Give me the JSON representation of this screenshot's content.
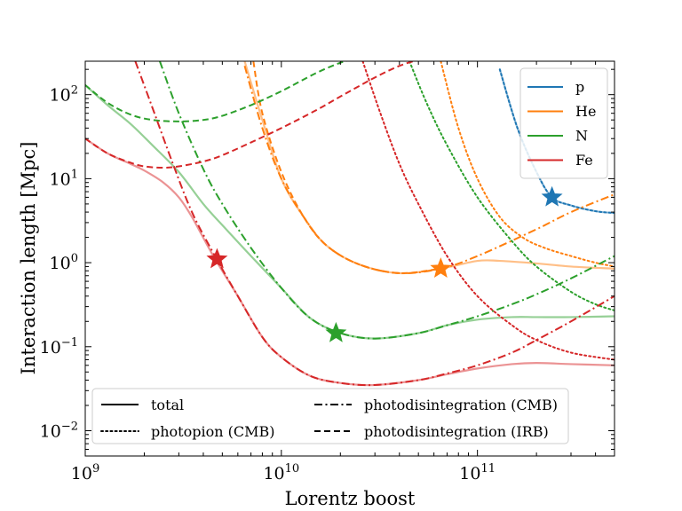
{
  "chart_data": {
    "type": "line",
    "xlabel": "Lorentz boost",
    "ylabel": "Interaction length [Mpc]",
    "xscale": "log",
    "yscale": "log",
    "xlim": [
      1000000000.0,
      500000000000.0
    ],
    "ylim": [
      0.005,
      250
    ],
    "x_ticks": [
      {
        "value": 1000000000.0,
        "base": "10",
        "exp": "9"
      },
      {
        "value": 10000000000.0,
        "base": "10",
        "exp": "10"
      },
      {
        "value": 100000000000.0,
        "base": "10",
        "exp": "11"
      }
    ],
    "y_ticks": [
      {
        "value": 0.01,
        "base": "10",
        "exp": "−2"
      },
      {
        "value": 0.1,
        "base": "10",
        "exp": "−1"
      },
      {
        "value": 1,
        "base": "10",
        "exp": "0"
      },
      {
        "value": 10,
        "base": "10",
        "exp": "1"
      },
      {
        "value": 100,
        "base": "10",
        "exp": "2"
      }
    ],
    "grid": false,
    "colors": {
      "p": "#1f77b4",
      "He": "#ff7f0e",
      "N": "#2ca02c",
      "Fe": "#d62728"
    },
    "species_legend": {
      "placement": "top-right",
      "entries": [
        {
          "name": "p",
          "color": "#1f77b4"
        },
        {
          "name": "He",
          "color": "#ff7f0e"
        },
        {
          "name": "N",
          "color": "#2ca02c"
        },
        {
          "name": "Fe",
          "color": "#d62728"
        }
      ]
    },
    "style_legend": {
      "placement": "lower-center",
      "entries": [
        {
          "label": "total",
          "style": "solid"
        },
        {
          "label": "photodisintegration (CMB)",
          "style": "dashdot"
        },
        {
          "label": "photopion (CMB)",
          "style": "dotted"
        },
        {
          "label": "photodisintegration (IRB)",
          "style": "dashed"
        }
      ]
    },
    "series": [
      {
        "species": "p",
        "process": "total",
        "style": "solid",
        "x": [
          130000000000.0,
          160000000000.0,
          200000000000.0,
          240000000000.0,
          300000000000.0,
          400000000000.0,
          500000000000.0
        ],
        "y": [
          200,
          40,
          12,
          6,
          4.8,
          4.1,
          3.9
        ]
      },
      {
        "species": "p",
        "process": "photopion (CMB)",
        "style": "dotted",
        "x": [
          130000000000.0,
          160000000000.0,
          200000000000.0,
          240000000000.0,
          300000000000.0,
          400000000000.0,
          500000000000.0
        ],
        "y": [
          200,
          40,
          12,
          6,
          4.8,
          4.1,
          3.9
        ]
      },
      {
        "species": "He",
        "process": "photodisintegration (CMB)",
        "style": "dashdot",
        "x": [
          6500000000.0,
          8000000000.0,
          10000000000.0,
          13000000000.0,
          17000000000.0,
          25000000000.0,
          40000000000.0,
          65000000000.0,
          100000000000.0,
          200000000000.0,
          300000000000.0,
          500000000000.0
        ],
        "y": [
          220,
          40,
          10,
          3.5,
          1.6,
          0.95,
          0.75,
          0.85,
          1.2,
          2.5,
          4,
          6.5
        ]
      },
      {
        "species": "He",
        "process": "photodisintegration (IRB)",
        "style": "dashed",
        "x": [
          7200000000.0,
          8000000000.0,
          10000000000.0,
          13000000000.0,
          17000000000.0,
          25000000000.0,
          40000000000.0,
          65000000000.0
        ],
        "y": [
          250,
          60,
          12,
          3.5,
          1.6,
          0.95,
          0.75,
          0.85
        ]
      },
      {
        "species": "He",
        "process": "photopion (CMB)",
        "style": "dotted",
        "x": [
          65000000000.0,
          80000000000.0,
          100000000000.0,
          130000000000.0,
          170000000000.0,
          220000000000.0,
          300000000000.0,
          400000000000.0,
          500000000000.0
        ],
        "y": [
          250,
          40,
          10,
          3.5,
          2,
          1.5,
          1.2,
          1,
          0.9
        ]
      },
      {
        "species": "He",
        "process": "total",
        "style": "solid",
        "x": [
          6500000000.0,
          8000000000.0,
          10000000000.0,
          13000000000.0,
          17000000000.0,
          25000000000.0,
          40000000000.0,
          65000000000.0,
          100000000000.0,
          130000000000.0,
          200000000000.0,
          300000000000.0,
          500000000000.0
        ],
        "y": [
          250,
          50,
          10,
          3.5,
          1.6,
          0.95,
          0.75,
          0.85,
          1.05,
          1.05,
          0.98,
          0.9,
          0.85
        ]
      },
      {
        "species": "N",
        "process": "photodisintegration (IRB)",
        "style": "dashed",
        "x": [
          1000000000.0,
          1300000000.0,
          1700000000.0,
          2200000000.0,
          3000000000.0,
          4000000000.0,
          5000000000.0,
          7000000000.0,
          10000000000.0,
          15000000000.0,
          20000000000.0,
          23000000000.0
        ],
        "y": [
          130,
          80,
          58,
          50,
          48,
          50,
          56,
          75,
          110,
          180,
          240,
          260
        ]
      },
      {
        "species": "N",
        "process": "photodisintegration (CMB)",
        "style": "dashdot",
        "x": [
          2400000000.0,
          3000000000.0,
          4000000000.0,
          5000000000.0,
          7000000000.0,
          10000000000.0,
          14000000000.0,
          20000000000.0,
          30000000000.0,
          50000000000.0,
          70000000000.0,
          100000000000.0,
          150000000000.0,
          200000000000.0,
          300000000000.0,
          500000000000.0
        ],
        "y": [
          250,
          60,
          13,
          5,
          1.5,
          0.5,
          0.22,
          0.145,
          0.125,
          0.145,
          0.18,
          0.23,
          0.32,
          0.42,
          0.65,
          1.2
        ]
      },
      {
        "species": "N",
        "process": "photopion (CMB)",
        "style": "dotted",
        "x": [
          45000000000.0,
          55000000000.0,
          70000000000.0,
          100000000000.0,
          150000000000.0,
          200000000000.0,
          300000000000.0,
          400000000000.0,
          500000000000.0
        ],
        "y": [
          250,
          80,
          25,
          6,
          1.8,
          0.9,
          0.45,
          0.32,
          0.27
        ]
      },
      {
        "species": "N",
        "process": "total",
        "style": "solid",
        "x": [
          1000000000.0,
          1300000000.0,
          1700000000.0,
          2200000000.0,
          3000000000.0,
          4000000000.0,
          5000000000.0,
          7000000000.0,
          10000000000.0,
          14000000000.0,
          20000000000.0,
          30000000000.0,
          50000000000.0,
          70000000000.0,
          100000000000.0,
          150000000000.0,
          200000000000.0,
          300000000000.0,
          500000000000.0
        ],
        "y": [
          130,
          75,
          45,
          25,
          12,
          5,
          2.8,
          1.2,
          0.5,
          0.22,
          0.145,
          0.125,
          0.145,
          0.18,
          0.21,
          0.225,
          0.225,
          0.225,
          0.23
        ]
      },
      {
        "species": "Fe",
        "process": "photodisintegration (IRB)",
        "style": "dashed",
        "x": [
          1000000000.0,
          1300000000.0,
          1700000000.0,
          2000000000.0,
          2500000000.0,
          3000000000.0,
          4000000000.0,
          5000000000.0,
          7000000000.0,
          10000000000.0,
          15000000000.0,
          20000000000.0,
          30000000000.0,
          40000000000.0,
          50000000000.0
        ],
        "y": [
          30,
          20,
          15.5,
          14,
          13.5,
          14,
          16,
          19,
          27,
          40,
          65,
          95,
          160,
          220,
          260
        ]
      },
      {
        "species": "Fe",
        "process": "photodisintegration (CMB)",
        "style": "dashdot",
        "x": [
          1800000000.0,
          2200000000.0,
          2800000000.0,
          3500000000.0,
          4500000000.0,
          6000000000.0,
          8000000000.0,
          10000000000.0,
          14000000000.0,
          20000000000.0,
          30000000000.0,
          50000000000.0,
          70000000000.0,
          100000000000.0,
          150000000000.0,
          200000000000.0,
          300000000000.0,
          500000000000.0
        ],
        "y": [
          250,
          70,
          15,
          4,
          1.3,
          0.4,
          0.13,
          0.075,
          0.045,
          0.037,
          0.035,
          0.04,
          0.048,
          0.06,
          0.085,
          0.12,
          0.2,
          0.4
        ]
      },
      {
        "species": "Fe",
        "process": "photopion (CMB)",
        "style": "dotted",
        "x": [
          26000000000.0,
          32000000000.0,
          40000000000.0,
          50000000000.0,
          70000000000.0,
          100000000000.0,
          150000000000.0,
          200000000000.0,
          300000000000.0,
          500000000000.0
        ],
        "y": [
          250,
          60,
          15,
          5,
          1.2,
          0.4,
          0.18,
          0.12,
          0.085,
          0.07
        ]
      },
      {
        "species": "Fe",
        "process": "total",
        "style": "solid",
        "x": [
          1000000000.0,
          1300000000.0,
          1700000000.0,
          2000000000.0,
          2500000000.0,
          3000000000.0,
          3500000000.0,
          4500000000.0,
          6000000000.0,
          8000000000.0,
          10000000000.0,
          14000000000.0,
          20000000000.0,
          30000000000.0,
          50000000000.0,
          70000000000.0,
          100000000000.0,
          150000000000.0,
          200000000000.0,
          300000000000.0,
          500000000000.0
        ],
        "y": [
          30,
          20,
          15,
          12.5,
          9,
          6,
          3.5,
          1.2,
          0.4,
          0.13,
          0.075,
          0.045,
          0.037,
          0.035,
          0.04,
          0.047,
          0.055,
          0.062,
          0.064,
          0.062,
          0.06
        ]
      }
    ],
    "markers": [
      {
        "species": "p",
        "x": 240000000000.0,
        "y": 6.0,
        "symbol": "star"
      },
      {
        "species": "He",
        "x": 65000000000.0,
        "y": 0.85,
        "symbol": "star"
      },
      {
        "species": "N",
        "x": 19000000000.0,
        "y": 0.145,
        "symbol": "star"
      },
      {
        "species": "Fe",
        "x": 4700000000.0,
        "y": 1.1,
        "symbol": "star"
      }
    ]
  }
}
